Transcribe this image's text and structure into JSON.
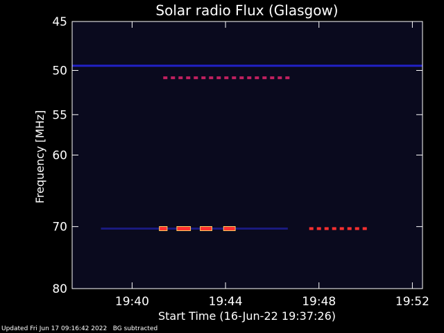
{
  "chart_data": {
    "type": "heatmap",
    "title": "Solar radio Flux (Glasgow)",
    "xlabel": "Start Time (16-Jun-22 19:37:26)",
    "ylabel": "Frequency [MHz]",
    "x_ticks": [
      "19:40",
      "19:44",
      "19:48",
      "19:52"
    ],
    "y_ticks": [
      45,
      50,
      55,
      60,
      70,
      80
    ],
    "xlim_minutes": [
      0,
      15.0
    ],
    "background_color": "#0a0a1e",
    "emissions": [
      {
        "kind": "steady-band",
        "freq_mhz": 49.5,
        "start": "19:37:26",
        "end": "19:52:26",
        "level": "low",
        "color": "#2a2aff"
      },
      {
        "kind": "dashed-band",
        "freq_mhz": 50.8,
        "start": "19:41:20",
        "end": "19:46:50",
        "level": "medium",
        "color": "#c02060"
      },
      {
        "kind": "steady-band",
        "freq_mhz": 70.3,
        "start": "19:38:40",
        "end": "19:46:40",
        "level": "low",
        "color": "#2020a0"
      },
      {
        "kind": "burst",
        "freq_mhz": 70.3,
        "start": "19:41:10",
        "end": "19:41:30",
        "level": "high",
        "color": "#ff3030"
      },
      {
        "kind": "burst",
        "freq_mhz": 70.3,
        "start": "19:41:55",
        "end": "19:42:30",
        "level": "high",
        "color": "#ff3030"
      },
      {
        "kind": "burst",
        "freq_mhz": 70.3,
        "start": "19:42:55",
        "end": "19:43:25",
        "level": "high",
        "color": "#ff3030"
      },
      {
        "kind": "burst",
        "freq_mhz": 70.3,
        "start": "19:43:55",
        "end": "19:44:25",
        "level": "high",
        "color": "#ff3030"
      },
      {
        "kind": "dashed-band",
        "freq_mhz": 70.3,
        "start": "19:47:35",
        "end": "19:50:05",
        "level": "medium",
        "color": "#ff3030"
      }
    ]
  },
  "footer": {
    "updated": "Updated Fri Jun 17 09:16:42 2022",
    "note": "BG subtracted"
  }
}
